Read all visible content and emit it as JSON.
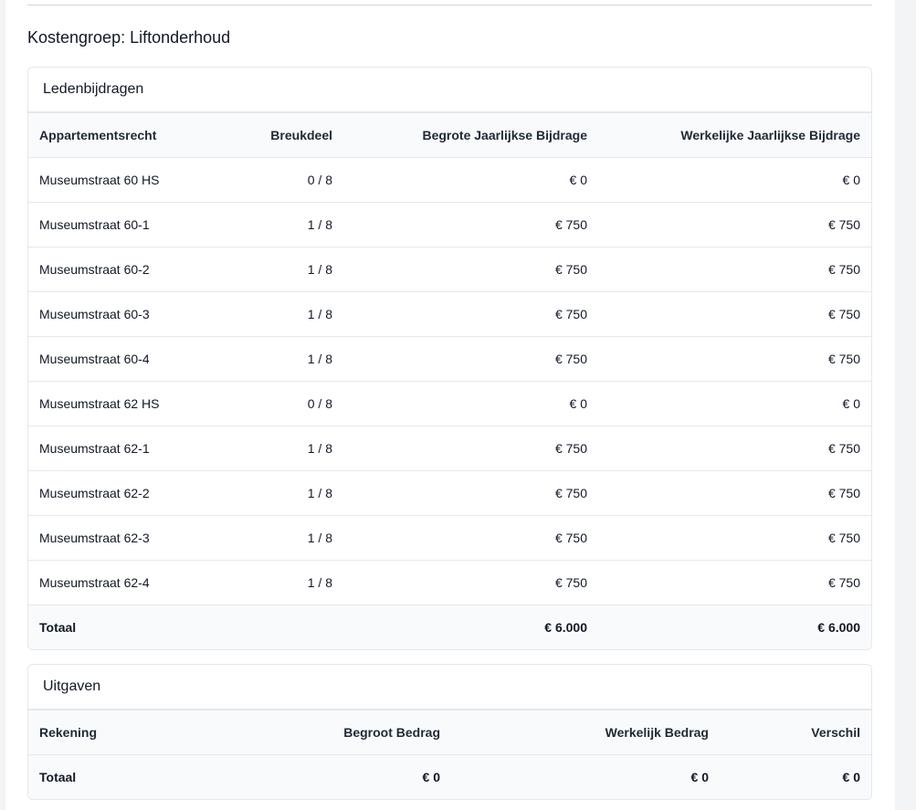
{
  "header": {
    "title": "Kostengroep: Liftonderhoud"
  },
  "contributions": {
    "title": "Ledenbijdragen",
    "columns": [
      "Appartementsrecht",
      "Breukdeel",
      "Begrote Jaarlijkse Bijdrage",
      "Werkelijke Jaarlijkse Bijdrage"
    ],
    "rows": [
      [
        "Museumstraat 60 HS",
        "0 / 8",
        "€ 0",
        "€ 0"
      ],
      [
        "Museumstraat 60-1",
        "1 / 8",
        "€ 750",
        "€ 750"
      ],
      [
        "Museumstraat 60-2",
        "1 / 8",
        "€ 750",
        "€ 750"
      ],
      [
        "Museumstraat 60-3",
        "1 / 8",
        "€ 750",
        "€ 750"
      ],
      [
        "Museumstraat 60-4",
        "1 / 8",
        "€ 750",
        "€ 750"
      ],
      [
        "Museumstraat 62 HS",
        "0 / 8",
        "€ 0",
        "€ 0"
      ],
      [
        "Museumstraat 62-1",
        "1 / 8",
        "€ 750",
        "€ 750"
      ],
      [
        "Museumstraat 62-2",
        "1 / 8",
        "€ 750",
        "€ 750"
      ],
      [
        "Museumstraat 62-3",
        "1 / 8",
        "€ 750",
        "€ 750"
      ],
      [
        "Museumstraat 62-4",
        "1 / 8",
        "€ 750",
        "€ 750"
      ]
    ],
    "total": {
      "label": "Totaal",
      "budgeted": "€ 6.000",
      "actual": "€ 6.000"
    }
  },
  "expenses": {
    "title": "Uitgaven",
    "columns": [
      "Rekening",
      "Begroot Bedrag",
      "Werkelijk Bedrag",
      "Verschil"
    ],
    "total": {
      "label": "Totaal",
      "budgeted": "€ 0",
      "actual": "€ 0",
      "difference": "€ 0"
    }
  }
}
